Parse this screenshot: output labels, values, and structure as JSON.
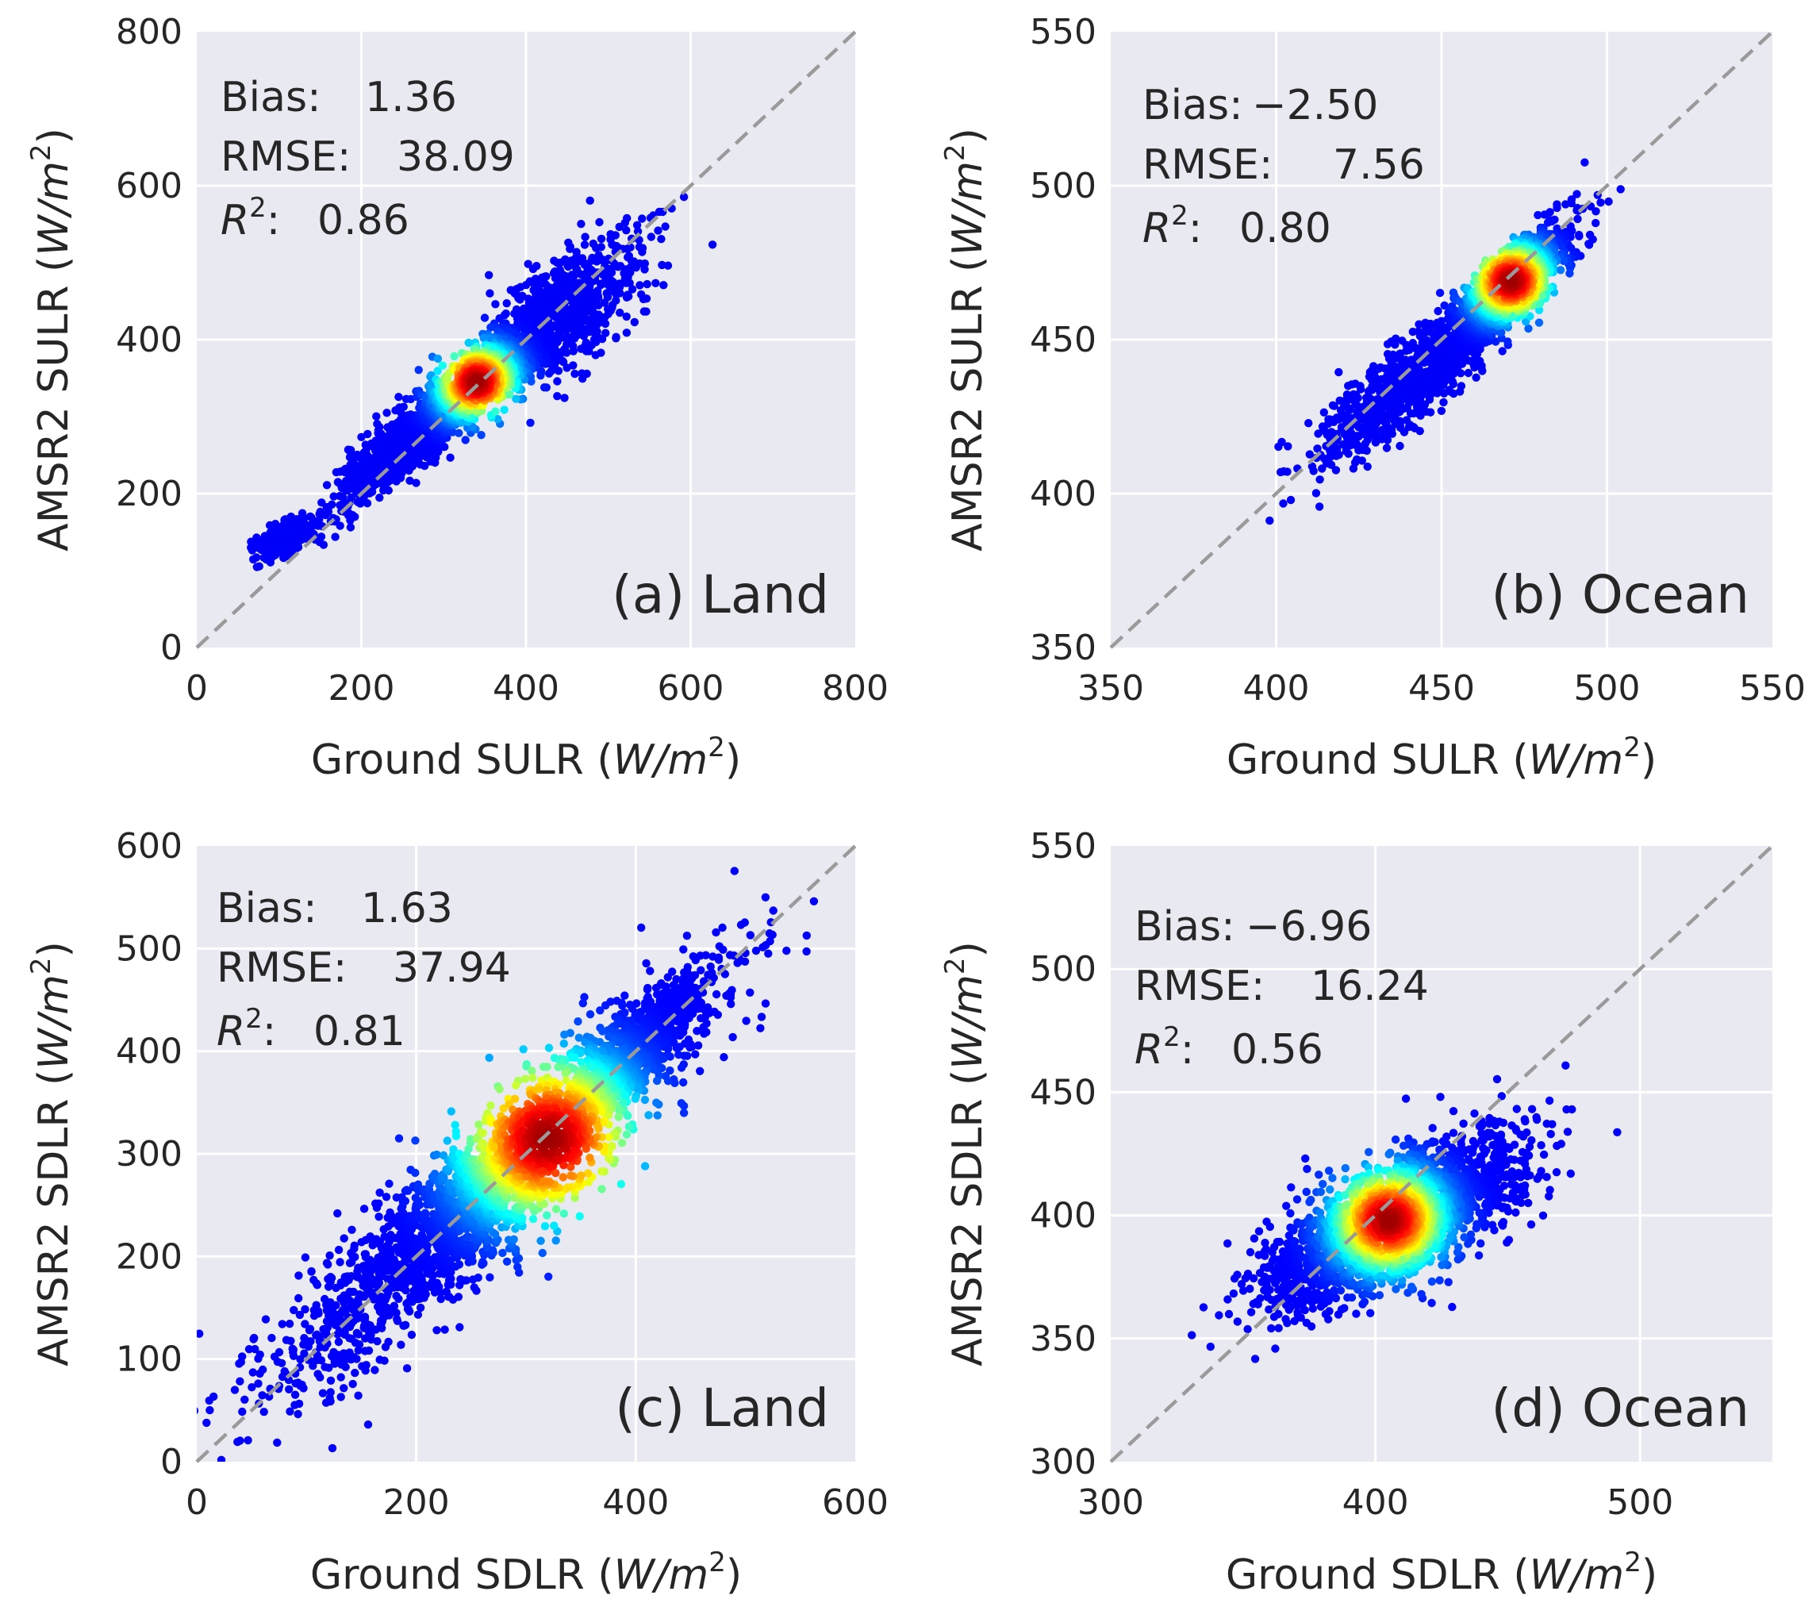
{
  "chart_data": [
    {
      "type": "scatter",
      "panel": "a",
      "title": "",
      "corner_label": "(a) Land",
      "xlabel": "Ground SULR (W/m²)",
      "xlabel_main": "Ground SULR (",
      "xlabel_unit": "W/m",
      "xlabel_close": ")",
      "ylabel": "AMSR2 SULR (W/m²)",
      "ylabel_main": "AMSR2 SULR (",
      "ylabel_unit": "W/m",
      "ylabel_close": ")",
      "xlim": [
        0,
        800
      ],
      "ylim": [
        0,
        800
      ],
      "xticks": [
        0,
        200,
        400,
        600,
        800
      ],
      "yticks": [
        0,
        200,
        400,
        600,
        800
      ],
      "xtick_labels": [
        "0",
        "200",
        "400",
        "600",
        "800"
      ],
      "ytick_labels": [
        "0",
        "200",
        "400",
        "600",
        "800"
      ],
      "grid": true,
      "one_to_one_line": true,
      "stats": {
        "bias_label": "Bias:",
        "bias_value": "1.36",
        "rmse_label": "RMSE:",
        "rmse_value": "38.09",
        "r2_label": "R",
        "r2_value": "0.86"
      },
      "density_clusters": [
        {
          "cx": 105,
          "cy": 140,
          "sx": 15,
          "sy": 12,
          "rho": 0.6,
          "n": 450
        },
        {
          "cx": 240,
          "cy": 250,
          "sx": 40,
          "sy": 38,
          "rho": 0.85,
          "n": 700
        },
        {
          "cx": 340,
          "cy": 345,
          "sx": 45,
          "sy": 40,
          "rho": 0.85,
          "n": 1000
        },
        {
          "cx": 440,
          "cy": 430,
          "sx": 55,
          "sy": 55,
          "rho": 0.75,
          "n": 800
        }
      ],
      "hot_spot": [
        340,
        345
      ],
      "colormap": "jet"
    },
    {
      "type": "scatter",
      "panel": "b",
      "title": "",
      "corner_label": "(b) Ocean",
      "xlabel": "Ground SULR (W/m²)",
      "xlabel_main": "Ground SULR (",
      "xlabel_unit": "W/m",
      "xlabel_close": ")",
      "ylabel": "AMSR2 SULR (W/m²)",
      "ylabel_main": "AMSR2 SULR (",
      "ylabel_unit": "W/m",
      "ylabel_close": ")",
      "xlim": [
        350,
        550
      ],
      "ylim": [
        350,
        550
      ],
      "xticks": [
        350,
        400,
        450,
        500,
        550
      ],
      "yticks": [
        350,
        400,
        450,
        500,
        550
      ],
      "xtick_labels": [
        "350",
        "400",
        "450",
        "500",
        "550"
      ],
      "ytick_labels": [
        "350",
        "400",
        "450",
        "500",
        "550"
      ],
      "grid": true,
      "one_to_one_line": true,
      "stats": {
        "bias_label": "Bias:",
        "bias_value": "−2.50",
        "rmse_label": "RMSE:",
        "rmse_value": "7.56",
        "r2_label": "R",
        "r2_value": "0.80"
      },
      "density_clusters": [
        {
          "cx": 440,
          "cy": 436,
          "sx": 14,
          "sy": 13,
          "rho": 0.85,
          "n": 900
        },
        {
          "cx": 470,
          "cy": 467,
          "sx": 9,
          "sy": 10,
          "rho": 0.8,
          "n": 1300
        }
      ],
      "hot_spot": [
        471,
        469
      ],
      "colormap": "jet"
    },
    {
      "type": "scatter",
      "panel": "c",
      "title": "",
      "corner_label": "(c) Land",
      "xlabel": "Ground SDLR (W/m²)",
      "xlabel_main": "Ground SDLR (",
      "xlabel_unit": "W/m",
      "xlabel_close": ")",
      "ylabel": "AMSR2 SDLR (W/m²)",
      "ylabel_main": "AMSR2 SDLR (",
      "ylabel_unit": "W/m",
      "ylabel_close": ")",
      "xlim": [
        0,
        600
      ],
      "ylim": [
        0,
        600
      ],
      "xticks": [
        0,
        200,
        400,
        600
      ],
      "yticks": [
        0,
        100,
        200,
        300,
        400,
        500,
        600
      ],
      "xtick_labels": [
        "0",
        "200",
        "400",
        "600"
      ],
      "ytick_labels": [
        "0",
        "100",
        "200",
        "300",
        "400",
        "500",
        "600"
      ],
      "grid": true,
      "one_to_one_line": true,
      "stats": {
        "bias_label": "Bias:",
        "bias_value": "1.63",
        "rmse_label": "RMSE:",
        "rmse_value": "37.94",
        "r2_label": "R",
        "r2_value": "0.81"
      },
      "density_clusters": [
        {
          "cx": 270,
          "cy": 270,
          "sx": 95,
          "sy": 95,
          "rho": 0.92,
          "n": 2600
        },
        {
          "cx": 400,
          "cy": 405,
          "sx": 30,
          "sy": 32,
          "rho": 0.85,
          "n": 700
        }
      ],
      "hot_spot": [
        320,
        315
      ],
      "colormap": "jet"
    },
    {
      "type": "scatter",
      "panel": "d",
      "title": "",
      "corner_label": "(d) Ocean",
      "xlabel": "Ground SDLR (W/m²)",
      "xlabel_main": "Ground SDLR (",
      "xlabel_unit": "W/m",
      "xlabel_close": ")",
      "ylabel": "AMSR2 SDLR (W/m²)",
      "ylabel_main": "AMSR2 SDLR (",
      "ylabel_unit": "W/m",
      "ylabel_close": ")",
      "xlim": [
        300,
        550
      ],
      "ylim": [
        300,
        550
      ],
      "xticks": [
        300,
        400,
        500
      ],
      "yticks": [
        300,
        350,
        400,
        450,
        500,
        550
      ],
      "xtick_labels": [
        "300",
        "400",
        "500"
      ],
      "ytick_labels": [
        "300",
        "350",
        "400",
        "450",
        "500",
        "550"
      ],
      "grid": true,
      "one_to_one_line": true,
      "stats": {
        "bias_label": "Bias:",
        "bias_value": "−6.96",
        "rmse_label": "RMSE:",
        "rmse_value": "16.24",
        "r2_label": "R",
        "r2_value": "0.56"
      },
      "density_clusters": [
        {
          "cx": 408,
          "cy": 398,
          "sx": 24,
          "sy": 17,
          "rho": 0.7,
          "n": 2200
        }
      ],
      "hot_spot": [
        405,
        398
      ],
      "colormap": "jet"
    }
  ],
  "colors": {
    "panel_background": "#e9e9f1",
    "grid": "#ffffff",
    "one_to_one_line": "#9a9a9a",
    "text": "#262626"
  }
}
